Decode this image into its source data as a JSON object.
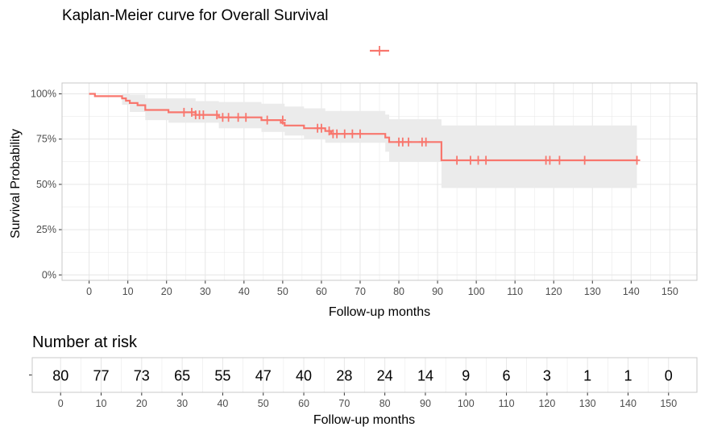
{
  "colors": {
    "curve": "#F8766D",
    "ci_band": "#ebebeb",
    "grid": "#e6e6e6",
    "panel_border": "#c8c8c8",
    "tick_text": "#4d4d4d"
  },
  "chart_data": [
    {
      "type": "line",
      "subtype": "kaplan-meier",
      "title": "Kaplan-Meier curve for Overall Survival",
      "xlabel": "Follow-up months",
      "ylabel": "Survival Probability",
      "xlim": [
        -7,
        157
      ],
      "ylim": [
        -0.03,
        1.06
      ],
      "xticks": [
        0,
        10,
        20,
        30,
        40,
        50,
        60,
        70,
        80,
        90,
        100,
        110,
        120,
        130,
        140,
        150
      ],
      "xtick_labels": [
        "0",
        "10",
        "20",
        "30",
        "40",
        "50",
        "60",
        "70",
        "80",
        "90",
        "100",
        "110",
        "120",
        "130",
        "140",
        "150"
      ],
      "yticks": [
        0,
        0.25,
        0.5,
        0.75,
        1.0
      ],
      "ytick_labels": [
        "0%",
        "25%",
        "50%",
        "75%",
        "100%"
      ],
      "grid": true,
      "legend": {
        "position": "top",
        "entries": [
          {
            "label": "",
            "marker": "line-with-cross"
          }
        ]
      },
      "series": [
        {
          "steps": [
            {
              "x": 0,
              "y": 1.0
            },
            {
              "x": 1.5,
              "y": 0.987
            },
            {
              "x": 8.5,
              "y": 0.975
            },
            {
              "x": 9.5,
              "y": 0.962
            },
            {
              "x": 10.5,
              "y": 0.949
            },
            {
              "x": 12.5,
              "y": 0.937
            },
            {
              "x": 14.5,
              "y": 0.911
            },
            {
              "x": 20.5,
              "y": 0.898
            },
            {
              "x": 27.5,
              "y": 0.884
            },
            {
              "x": 33.5,
              "y": 0.87
            },
            {
              "x": 44.5,
              "y": 0.855
            },
            {
              "x": 49.5,
              "y": 0.84
            },
            {
              "x": 50.5,
              "y": 0.825
            },
            {
              "x": 55.5,
              "y": 0.81
            },
            {
              "x": 61,
              "y": 0.795
            },
            {
              "x": 62.5,
              "y": 0.779
            },
            {
              "x": 76.5,
              "y": 0.759
            },
            {
              "x": 77.5,
              "y": 0.734
            },
            {
              "x": 91,
              "y": 0.633
            },
            {
              "x": 141.5,
              "y": 0.633
            }
          ],
          "ci_upper": [
            {
              "x": 0,
              "y": 1.0
            },
            {
              "x": 8.5,
              "y": 1.0
            },
            {
              "x": 10.5,
              "y": 0.995
            },
            {
              "x": 14.5,
              "y": 0.975
            },
            {
              "x": 27.5,
              "y": 0.96
            },
            {
              "x": 33.5,
              "y": 0.955
            },
            {
              "x": 44.5,
              "y": 0.945
            },
            {
              "x": 50.5,
              "y": 0.93
            },
            {
              "x": 55.5,
              "y": 0.92
            },
            {
              "x": 61,
              "y": 0.905
            },
            {
              "x": 76.5,
              "y": 0.885
            },
            {
              "x": 77.5,
              "y": 0.86
            },
            {
              "x": 91,
              "y": 0.825
            },
            {
              "x": 141.5,
              "y": 0.825
            }
          ],
          "ci_lower": [
            {
              "x": 0,
              "y": 1.0
            },
            {
              "x": 8.5,
              "y": 0.94
            },
            {
              "x": 10.5,
              "y": 0.9
            },
            {
              "x": 14.5,
              "y": 0.855
            },
            {
              "x": 20.5,
              "y": 0.84
            },
            {
              "x": 33.5,
              "y": 0.81
            },
            {
              "x": 44.5,
              "y": 0.79
            },
            {
              "x": 50.5,
              "y": 0.77
            },
            {
              "x": 55.5,
              "y": 0.75
            },
            {
              "x": 61,
              "y": 0.73
            },
            {
              "x": 76.5,
              "y": 0.68
            },
            {
              "x": 77.5,
              "y": 0.625
            },
            {
              "x": 91,
              "y": 0.48
            },
            {
              "x": 141.5,
              "y": 0.48
            }
          ],
          "censored": [
            {
              "x": 24.5,
              "y": 0.898
            },
            {
              "x": 26.5,
              "y": 0.898
            },
            {
              "x": 27.5,
              "y": 0.884
            },
            {
              "x": 28.5,
              "y": 0.884
            },
            {
              "x": 29.5,
              "y": 0.884
            },
            {
              "x": 33,
              "y": 0.884
            },
            {
              "x": 34.5,
              "y": 0.87
            },
            {
              "x": 36,
              "y": 0.87
            },
            {
              "x": 38.5,
              "y": 0.87
            },
            {
              "x": 40.5,
              "y": 0.87
            },
            {
              "x": 46,
              "y": 0.855
            },
            {
              "x": 50,
              "y": 0.855
            },
            {
              "x": 59,
              "y": 0.81
            },
            {
              "x": 60,
              "y": 0.81
            },
            {
              "x": 62,
              "y": 0.795
            },
            {
              "x": 63,
              "y": 0.779
            },
            {
              "x": 64,
              "y": 0.779
            },
            {
              "x": 66,
              "y": 0.779
            },
            {
              "x": 68,
              "y": 0.779
            },
            {
              "x": 70,
              "y": 0.779
            },
            {
              "x": 80,
              "y": 0.734
            },
            {
              "x": 81,
              "y": 0.734
            },
            {
              "x": 82.5,
              "y": 0.734
            },
            {
              "x": 86,
              "y": 0.734
            },
            {
              "x": 87,
              "y": 0.734
            },
            {
              "x": 95,
              "y": 0.633
            },
            {
              "x": 98.5,
              "y": 0.633
            },
            {
              "x": 100.5,
              "y": 0.633
            },
            {
              "x": 102.5,
              "y": 0.633
            },
            {
              "x": 118,
              "y": 0.633
            },
            {
              "x": 119,
              "y": 0.633
            },
            {
              "x": 121.5,
              "y": 0.633
            },
            {
              "x": 128,
              "y": 0.633
            },
            {
              "x": 141.5,
              "y": 0.633
            }
          ]
        }
      ]
    },
    {
      "type": "table",
      "title": "Number at risk",
      "xlabel": "Follow-up months",
      "xlim": [
        -7,
        157
      ],
      "x": [
        0,
        10,
        20,
        30,
        40,
        50,
        60,
        70,
        80,
        90,
        100,
        110,
        120,
        130,
        140,
        150
      ],
      "xtick_labels": [
        "0",
        "10",
        "20",
        "30",
        "40",
        "50",
        "60",
        "70",
        "80",
        "90",
        "100",
        "110",
        "120",
        "130",
        "140",
        "150"
      ],
      "values": [
        "80",
        "77",
        "73",
        "65",
        "55",
        "47",
        "40",
        "28",
        "24",
        "14",
        "9",
        "6",
        "3",
        "1",
        "1",
        "0"
      ]
    }
  ]
}
